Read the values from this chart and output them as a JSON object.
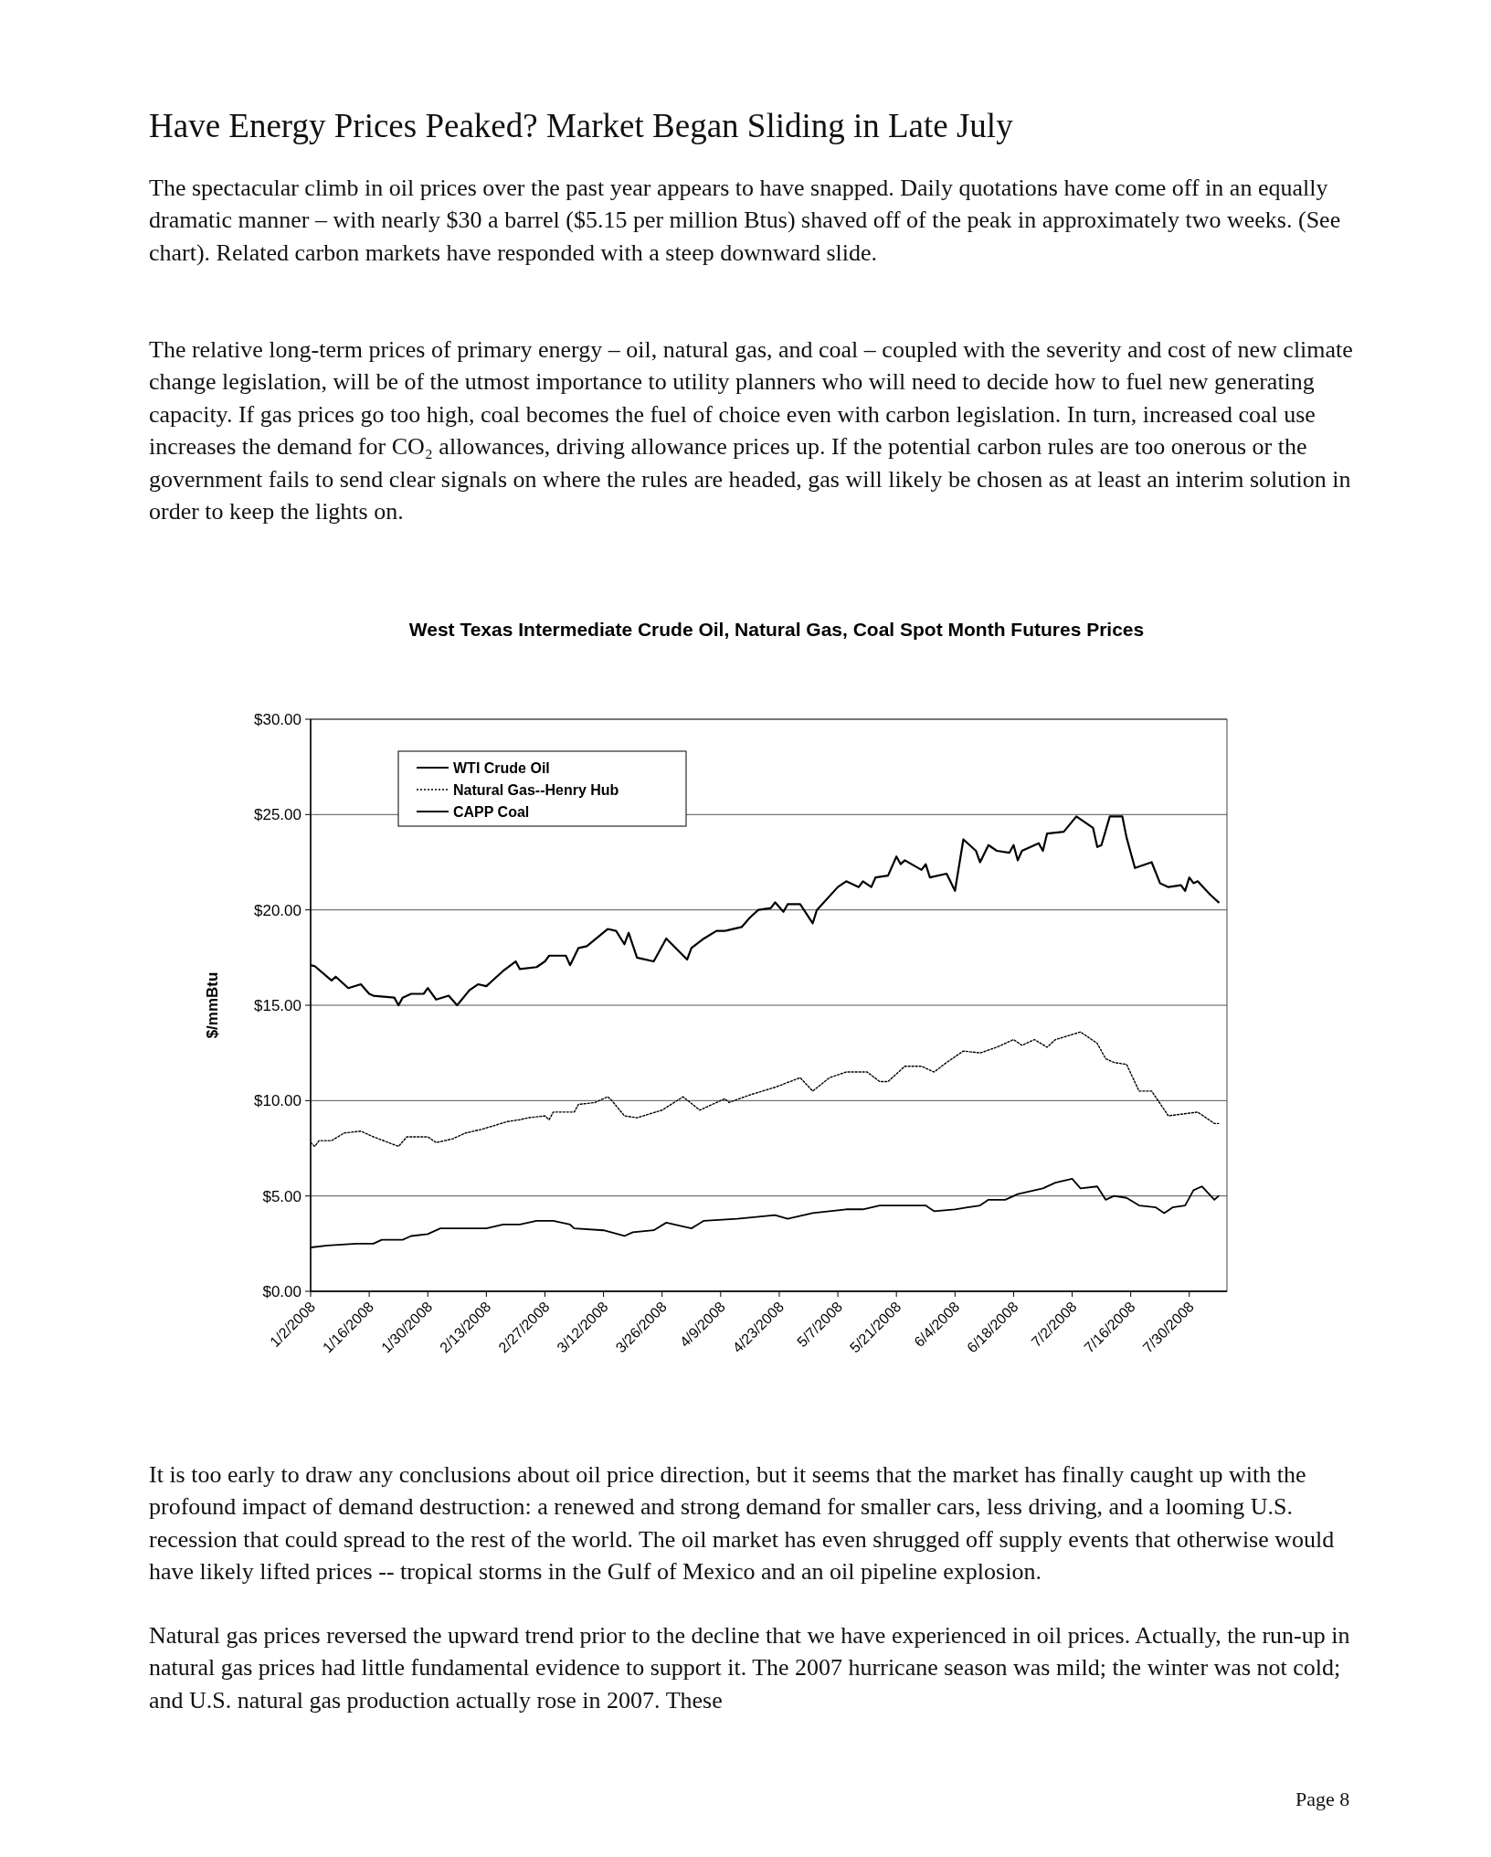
{
  "chart_data": {
    "type": "line",
    "title": "West Texas Intermediate Crude Oil, Natural Gas, Coal Spot Month Futures Prices",
    "ylabel": "$/mmBtu",
    "annotations": [
      "Have Energy Prices Peaked? Market Began Sliding in Late July",
      "The spectacular climb in oil prices over the past year appears to have snapped. Daily quotations have come off in an equally dramatic manner – with nearly $30 a barrel ($5.15 per million Btus) shaved off of the peak in approximately two weeks. (See chart). Related carbon markets have responded with a steep downward slide.",
      "The relative long-term prices of primary energy – oil, natural gas, and coal – coupled with the severity and cost of new climate change legislation, will be of the utmost importance to utility planners who will need to decide how to fuel new generating capacity. If gas prices go too high, coal becomes the fuel of choice even with carbon legislation. In turn, increased coal use increases the demand for CO₂ allowances, driving allowance prices up. If the potential carbon rules are too onerous or the government fails to send clear signals on where the rules are headed, gas will likely be chosen as at least an interim solution in order to keep the lights on.",
      "It is too early to draw any conclusions about oil price direction, but it seems that the market has finally caught up with the profound impact of demand destruction: a renewed and strong demand for smaller cars, less driving, and a looming U.S. recession that could spread to the rest of the world. The oil market has even shrugged off supply events that otherwise would have likely lifted prices -- tropical storms in the Gulf of Mexico and an oil pipeline explosion.",
      "Natural gas prices reversed the upward trend prior to the decline that we have experienced in oil prices. Actually, the run-up in natural gas prices had little fundamental evidence to support it.  The 2007 hurricane season was mild; the winter was not cold; and U.S. natural gas production actually rose in 2007. These",
      "Page 8"
    ],
    "xlim": [
      "2008-01-02",
      "2008-08-08"
    ],
    "xticks": [
      {
        "value": "2008-01-02",
        "label": "1/2/2008"
      },
      {
        "value": "2008-01-16",
        "label": "1/16/2008"
      },
      {
        "value": "2008-01-30",
        "label": "1/30/2008"
      },
      {
        "value": "2008-02-13",
        "label": "2/13/2008"
      },
      {
        "value": "2008-02-27",
        "label": "2/27/2008"
      },
      {
        "value": "2008-03-12",
        "label": "3/12/2008"
      },
      {
        "value": "2008-03-26",
        "label": "3/26/2008"
      },
      {
        "value": "2008-04-09",
        "label": "4/9/2008"
      },
      {
        "value": "2008-04-23",
        "label": "4/23/2008"
      },
      {
        "value": "2008-05-07",
        "label": "5/7/2008"
      },
      {
        "value": "2008-05-21",
        "label": "5/21/2008"
      },
      {
        "value": "2008-06-04",
        "label": "6/4/2008"
      },
      {
        "value": "2008-06-18",
        "label": "6/18/2008"
      },
      {
        "value": "2008-07-02",
        "label": "7/2/2008"
      },
      {
        "value": "2008-07-16",
        "label": "7/16/2008"
      },
      {
        "value": "2008-07-30",
        "label": "7/30/2008"
      }
    ],
    "ylim": [
      0,
      30
    ],
    "yticks": [
      {
        "value": 0,
        "label": "$0.00"
      },
      {
        "value": 5,
        "label": "$5.00"
      },
      {
        "value": 10,
        "label": "$10.00"
      },
      {
        "value": 15,
        "label": "$15.00"
      },
      {
        "value": 20,
        "label": "$20.00"
      },
      {
        "value": 25,
        "label": "$25.00"
      },
      {
        "value": 30,
        "label": "$30.00"
      }
    ],
    "grid": "y",
    "legend": "top left",
    "marker": "none",
    "line_style": "solid",
    "series": [
      {
        "name": "WTI Crude Oil",
        "color": "#000000",
        "x": [
          "2008-01-02",
          "2008-01-03",
          "2008-01-07",
          "2008-01-08",
          "2008-01-11",
          "2008-01-14",
          "2008-01-16",
          "2008-01-17",
          "2008-01-22",
          "2008-01-23",
          "2008-01-24",
          "2008-01-26",
          "2008-01-29",
          "2008-01-30",
          "2008-02-01",
          "2008-02-04",
          "2008-02-06",
          "2008-02-09",
          "2008-02-11",
          "2008-02-13",
          "2008-02-15",
          "2008-02-17",
          "2008-02-20",
          "2008-02-21",
          "2008-02-25",
          "2008-02-27",
          "2008-02-28",
          "2008-03-03",
          "2008-03-04",
          "2008-03-06",
          "2008-03-08",
          "2008-03-13",
          "2008-03-15",
          "2008-03-17",
          "2008-03-18",
          "2008-03-20",
          "2008-03-24",
          "2008-03-27",
          "2008-04-01",
          "2008-04-02",
          "2008-04-05",
          "2008-04-08",
          "2008-04-10",
          "2008-04-14",
          "2008-04-16",
          "2008-04-18",
          "2008-04-21",
          "2008-04-22",
          "2008-04-24",
          "2008-04-25",
          "2008-04-28",
          "2008-05-01",
          "2008-05-02",
          "2008-05-07",
          "2008-05-09",
          "2008-05-12",
          "2008-05-13",
          "2008-05-15",
          "2008-05-16",
          "2008-05-19",
          "2008-05-21",
          "2008-05-22",
          "2008-05-23",
          "2008-05-27",
          "2008-05-28",
          "2008-05-29",
          "2008-06-02",
          "2008-06-04",
          "2008-06-06",
          "2008-06-09",
          "2008-06-10",
          "2008-06-12",
          "2008-06-14",
          "2008-06-17",
          "2008-06-18",
          "2008-06-19",
          "2008-06-20",
          "2008-06-24",
          "2008-06-25",
          "2008-06-26",
          "2008-06-30",
          "2008-07-03",
          "2008-07-07",
          "2008-07-08",
          "2008-07-09",
          "2008-07-11",
          "2008-07-14",
          "2008-07-15",
          "2008-07-17",
          "2008-07-21",
          "2008-07-23",
          "2008-07-25",
          "2008-07-28",
          "2008-07-29",
          "2008-07-30",
          "2008-07-31",
          "2008-08-01",
          "2008-08-04",
          "2008-08-06"
        ],
        "values": [
          17.1,
          17.05,
          16.3,
          16.5,
          15.9,
          16.1,
          15.6,
          15.5,
          15.4,
          15.0,
          15.4,
          15.6,
          15.6,
          15.9,
          15.3,
          15.5,
          15.0,
          15.8,
          16.1,
          16.0,
          16.4,
          16.8,
          17.3,
          16.9,
          17.0,
          17.3,
          17.6,
          17.6,
          17.1,
          18.0,
          18.1,
          19.0,
          18.9,
          18.2,
          18.8,
          17.5,
          17.3,
          18.5,
          17.4,
          18.0,
          18.5,
          18.9,
          18.9,
          19.1,
          19.6,
          20.0,
          20.1,
          20.4,
          19.9,
          20.3,
          20.3,
          19.3,
          20.0,
          21.2,
          21.5,
          21.2,
          21.5,
          21.2,
          21.7,
          21.8,
          22.8,
          22.4,
          22.6,
          22.1,
          22.4,
          21.7,
          21.9,
          21.0,
          23.7,
          23.1,
          22.5,
          23.4,
          23.1,
          23.0,
          23.4,
          22.6,
          23.1,
          23.5,
          23.1,
          24.0,
          24.1,
          24.9,
          24.3,
          23.3,
          23.4,
          24.9,
          24.9,
          23.8,
          22.2,
          22.5,
          21.4,
          21.2,
          21.3,
          21.0,
          21.7,
          21.4,
          21.5,
          20.8,
          20.4
        ]
      },
      {
        "name": "Natural Gas--Henry Hub",
        "color": "#000000",
        "line_style": "dotted",
        "x": [
          "2008-01-02",
          "2008-01-03",
          "2008-01-04",
          "2008-01-07",
          "2008-01-10",
          "2008-01-14",
          "2008-01-17",
          "2008-01-23",
          "2008-01-25",
          "2008-01-30",
          "2008-02-01",
          "2008-02-05",
          "2008-02-08",
          "2008-02-12",
          "2008-02-15",
          "2008-02-18",
          "2008-02-21",
          "2008-02-23",
          "2008-02-27",
          "2008-02-28",
          "2008-02-29",
          "2008-03-05",
          "2008-03-06",
          "2008-03-10",
          "2008-03-13",
          "2008-03-14",
          "2008-03-17",
          "2008-03-20",
          "2008-03-26",
          "2008-03-31",
          "2008-04-04",
          "2008-04-10",
          "2008-04-11",
          "2008-04-16",
          "2008-04-22",
          "2008-04-28",
          "2008-05-01",
          "2008-05-05",
          "2008-05-09",
          "2008-05-14",
          "2008-05-17",
          "2008-05-19",
          "2008-05-23",
          "2008-05-27",
          "2008-05-30",
          "2008-06-02",
          "2008-06-06",
          "2008-06-10",
          "2008-06-14",
          "2008-06-18",
          "2008-06-20",
          "2008-06-23",
          "2008-06-26",
          "2008-06-28",
          "2008-07-04",
          "2008-07-08",
          "2008-07-10",
          "2008-07-12",
          "2008-07-15",
          "2008-07-18",
          "2008-07-21",
          "2008-07-25",
          "2008-08-01",
          "2008-08-05",
          "2008-08-06"
        ],
        "values": [
          7.8,
          7.6,
          7.9,
          7.9,
          8.3,
          8.4,
          8.1,
          7.6,
          8.1,
          8.1,
          7.8,
          8.0,
          8.3,
          8.5,
          8.7,
          8.9,
          9.0,
          9.1,
          9.2,
          9.0,
          9.4,
          9.4,
          9.8,
          9.9,
          10.2,
          10.0,
          9.2,
          9.1,
          9.5,
          10.2,
          9.5,
          10.1,
          9.9,
          10.3,
          10.7,
          11.2,
          10.5,
          11.2,
          11.5,
          11.5,
          11.0,
          11.0,
          11.8,
          11.8,
          11.5,
          12.0,
          12.6,
          12.5,
          12.8,
          13.2,
          12.9,
          13.2,
          12.8,
          13.2,
          13.6,
          13.0,
          12.2,
          12.0,
          11.9,
          10.5,
          10.5,
          9.2,
          9.4,
          8.8,
          8.8
        ]
      },
      {
        "name": "CAPP Coal",
        "color": "#000000",
        "x": [
          "2008-01-02",
          "2008-01-06",
          "2008-01-13",
          "2008-01-17",
          "2008-01-19",
          "2008-01-24",
          "2008-01-26",
          "2008-01-30",
          "2008-02-02",
          "2008-02-13",
          "2008-02-17",
          "2008-02-21",
          "2008-02-25",
          "2008-02-29",
          "2008-03-04",
          "2008-03-05",
          "2008-03-12",
          "2008-03-17",
          "2008-03-19",
          "2008-03-24",
          "2008-03-27",
          "2008-04-02",
          "2008-04-05",
          "2008-04-13",
          "2008-04-22",
          "2008-04-25",
          "2008-05-01",
          "2008-05-09",
          "2008-05-13",
          "2008-05-17",
          "2008-05-21",
          "2008-05-28",
          "2008-05-30",
          "2008-06-04",
          "2008-06-07",
          "2008-06-10",
          "2008-06-12",
          "2008-06-16",
          "2008-06-19",
          "2008-06-25",
          "2008-06-28",
          "2008-07-02",
          "2008-07-04",
          "2008-07-08",
          "2008-07-10",
          "2008-07-12",
          "2008-07-15",
          "2008-07-18",
          "2008-07-22",
          "2008-07-24",
          "2008-07-26",
          "2008-07-29",
          "2008-07-31",
          "2008-08-02",
          "2008-08-05",
          "2008-08-06"
        ],
        "values": [
          2.3,
          2.4,
          2.5,
          2.5,
          2.7,
          2.7,
          2.9,
          3.0,
          3.3,
          3.3,
          3.5,
          3.5,
          3.7,
          3.7,
          3.5,
          3.3,
          3.2,
          2.9,
          3.1,
          3.2,
          3.6,
          3.3,
          3.7,
          3.8,
          4.0,
          3.8,
          4.1,
          4.3,
          4.3,
          4.5,
          4.5,
          4.5,
          4.2,
          4.3,
          4.4,
          4.5,
          4.8,
          4.8,
          5.1,
          5.4,
          5.7,
          5.9,
          5.4,
          5.5,
          4.8,
          5.0,
          4.9,
          4.5,
          4.4,
          4.1,
          4.4,
          4.5,
          5.3,
          5.5,
          4.8,
          5.0
        ]
      }
    ]
  }
}
